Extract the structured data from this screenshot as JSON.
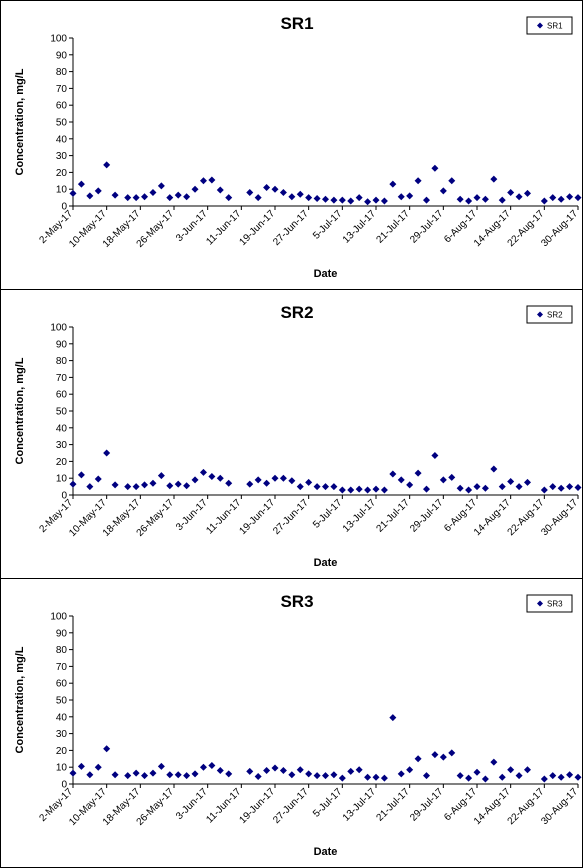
{
  "chart_data": [
    {
      "type": "scatter",
      "title": "SR1",
      "xlabel": "Date",
      "ylabel": "Concentration, mg/L",
      "ylim": [
        0,
        100
      ],
      "yticks": [
        0,
        10,
        20,
        30,
        40,
        50,
        60,
        70,
        80,
        90,
        100
      ],
      "xticks": [
        "2-May-17",
        "10-May-17",
        "18-May-17",
        "26-May-17",
        "3-Jun-17",
        "11-Jun-17",
        "19-Jun-17",
        "27-Jun-17",
        "5-Jul-17",
        "13-Jul-17",
        "21-Jul-17",
        "29-Jul-17",
        "6-Aug-17",
        "14-Aug-17",
        "22-Aug-17",
        "30-Aug-17"
      ],
      "legend": "top-right",
      "grid": false,
      "marker_color": "#000080",
      "series": [
        {
          "name": "SR1",
          "x": [
            "2-May-17",
            "4-May-17",
            "6-May-17",
            "8-May-17",
            "10-May-17",
            "12-May-17",
            "15-May-17",
            "17-May-17",
            "19-May-17",
            "21-May-17",
            "23-May-17",
            "25-May-17",
            "27-May-17",
            "29-May-17",
            "31-May-17",
            "2-Jun-17",
            "4-Jun-17",
            "6-Jun-17",
            "8-Jun-17",
            "13-Jun-17",
            "15-Jun-17",
            "17-Jun-17",
            "19-Jun-17",
            "21-Jun-17",
            "23-Jun-17",
            "25-Jun-17",
            "27-Jun-17",
            "29-Jun-17",
            "1-Jul-17",
            "3-Jul-17",
            "5-Jul-17",
            "7-Jul-17",
            "9-Jul-17",
            "11-Jul-17",
            "13-Jul-17",
            "15-Jul-17",
            "17-Jul-17",
            "19-Jul-17",
            "21-Jul-17",
            "23-Jul-17",
            "25-Jul-17",
            "27-Jul-17",
            "29-Jul-17",
            "31-Jul-17",
            "2-Aug-17",
            "4-Aug-17",
            "6-Aug-17",
            "8-Aug-17",
            "10-Aug-17",
            "12-Aug-17",
            "14-Aug-17",
            "16-Aug-17",
            "18-Aug-17",
            "22-Aug-17",
            "24-Aug-17",
            "26-Aug-17",
            "28-Aug-17",
            "30-Aug-17"
          ],
          "y": [
            7.5,
            13,
            6,
            9,
            24.5,
            6.5,
            5,
            5,
            5.5,
            8,
            12,
            5,
            6.5,
            5.5,
            10,
            15,
            15.5,
            9.5,
            5,
            8,
            5,
            11,
            10,
            8,
            5.5,
            7,
            5,
            4.5,
            4,
            3.5,
            3.5,
            3,
            5,
            2.5,
            3.5,
            3,
            13,
            5.5,
            6,
            15,
            3.5,
            22.5,
            9,
            15,
            4,
            3,
            5,
            4,
            16,
            3.5,
            8,
            5.5,
            7.5,
            3,
            5,
            4,
            5.5,
            5
          ]
        }
      ]
    },
    {
      "type": "scatter",
      "title": "SR2",
      "xlabel": "Date",
      "ylabel": "Concentration, mg/L",
      "ylim": [
        0,
        100
      ],
      "yticks": [
        0,
        10,
        20,
        30,
        40,
        50,
        60,
        70,
        80,
        90,
        100
      ],
      "xticks": [
        "2-May-17",
        "10-May-17",
        "18-May-17",
        "26-May-17",
        "3-Jun-17",
        "11-Jun-17",
        "19-Jun-17",
        "27-Jun-17",
        "5-Jul-17",
        "13-Jul-17",
        "21-Jul-17",
        "29-Jul-17",
        "6-Aug-17",
        "14-Aug-17",
        "22-Aug-17",
        "30-Aug-17"
      ],
      "legend": "top-right",
      "grid": false,
      "marker_color": "#000080",
      "series": [
        {
          "name": "SR2",
          "x": [
            "2-May-17",
            "4-May-17",
            "6-May-17",
            "8-May-17",
            "10-May-17",
            "12-May-17",
            "15-May-17",
            "17-May-17",
            "19-May-17",
            "21-May-17",
            "23-May-17",
            "25-May-17",
            "27-May-17",
            "29-May-17",
            "31-May-17",
            "2-Jun-17",
            "4-Jun-17",
            "6-Jun-17",
            "8-Jun-17",
            "13-Jun-17",
            "15-Jun-17",
            "17-Jun-17",
            "19-Jun-17",
            "21-Jun-17",
            "23-Jun-17",
            "25-Jun-17",
            "27-Jun-17",
            "29-Jun-17",
            "1-Jul-17",
            "3-Jul-17",
            "5-Jul-17",
            "7-Jul-17",
            "9-Jul-17",
            "11-Jul-17",
            "13-Jul-17",
            "15-Jul-17",
            "17-Jul-17",
            "19-Jul-17",
            "21-Jul-17",
            "23-Jul-17",
            "25-Jul-17",
            "27-Jul-17",
            "29-Jul-17",
            "31-Jul-17",
            "2-Aug-17",
            "4-Aug-17",
            "6-Aug-17",
            "8-Aug-17",
            "10-Aug-17",
            "12-Aug-17",
            "14-Aug-17",
            "16-Aug-17",
            "18-Aug-17",
            "22-Aug-17",
            "24-Aug-17",
            "26-Aug-17",
            "28-Aug-17",
            "30-Aug-17"
          ],
          "y": [
            6.5,
            12,
            5,
            9.5,
            25,
            6,
            5,
            5,
            6,
            7,
            11.5,
            5.5,
            6.5,
            5.5,
            9,
            13.5,
            11,
            10,
            7,
            6.5,
            9,
            7,
            10,
            10,
            8.5,
            5,
            7.5,
            5,
            5,
            5,
            3,
            3,
            3.5,
            3,
            3.5,
            3,
            12.5,
            9,
            6,
            13,
            3.5,
            23.5,
            9,
            10.5,
            4,
            3,
            5,
            4,
            15.5,
            5,
            8,
            5,
            7.5,
            3,
            5,
            4,
            5,
            4.5
          ]
        }
      ]
    },
    {
      "type": "scatter",
      "title": "SR3",
      "xlabel": "Date",
      "ylabel": "Concentration, mg/L",
      "ylim": [
        0,
        100
      ],
      "yticks": [
        0,
        10,
        20,
        30,
        40,
        50,
        60,
        70,
        80,
        90,
        100
      ],
      "xticks": [
        "2-May-17",
        "10-May-17",
        "18-May-17",
        "26-May-17",
        "3-Jun-17",
        "11-Jun-17",
        "19-Jun-17",
        "27-Jun-17",
        "5-Jul-17",
        "13-Jul-17",
        "21-Jul-17",
        "29-Jul-17",
        "6-Aug-17",
        "14-Aug-17",
        "22-Aug-17",
        "30-Aug-17"
      ],
      "legend": "top-right",
      "grid": false,
      "marker_color": "#000080",
      "series": [
        {
          "name": "SR3",
          "x": [
            "2-May-17",
            "4-May-17",
            "6-May-17",
            "8-May-17",
            "10-May-17",
            "12-May-17",
            "15-May-17",
            "17-May-17",
            "19-May-17",
            "21-May-17",
            "23-May-17",
            "25-May-17",
            "27-May-17",
            "29-May-17",
            "31-May-17",
            "2-Jun-17",
            "4-Jun-17",
            "6-Jun-17",
            "8-Jun-17",
            "13-Jun-17",
            "15-Jun-17",
            "17-Jun-17",
            "19-Jun-17",
            "21-Jun-17",
            "23-Jun-17",
            "25-Jun-17",
            "27-Jun-17",
            "29-Jun-17",
            "1-Jul-17",
            "3-Jul-17",
            "5-Jul-17",
            "7-Jul-17",
            "9-Jul-17",
            "11-Jul-17",
            "13-Jul-17",
            "15-Jul-17",
            "17-Jul-17",
            "19-Jul-17",
            "21-Jul-17",
            "23-Jul-17",
            "25-Jul-17",
            "27-Jul-17",
            "29-Jul-17",
            "31-Jul-17",
            "2-Aug-17",
            "4-Aug-17",
            "6-Aug-17",
            "8-Aug-17",
            "10-Aug-17",
            "12-Aug-17",
            "14-Aug-17",
            "16-Aug-17",
            "18-Aug-17",
            "22-Aug-17",
            "24-Aug-17",
            "26-Aug-17",
            "28-Aug-17",
            "30-Aug-17"
          ],
          "y": [
            6.5,
            10.5,
            5.5,
            10,
            21,
            5.5,
            5,
            6.5,
            5,
            6.5,
            10.5,
            5.5,
            5.5,
            5,
            6,
            10,
            11,
            8,
            6,
            7.5,
            4.5,
            8,
            9.5,
            8,
            5.5,
            8.5,
            6,
            5,
            5,
            5.5,
            3.5,
            7.5,
            8.5,
            4,
            4,
            3.5,
            39.5,
            6,
            8.5,
            15,
            5,
            17.5,
            16,
            18.5,
            5,
            3.5,
            7,
            3,
            13,
            4,
            8.5,
            5,
            8.5,
            3,
            5,
            4,
            5.5,
            4
          ]
        }
      ]
    }
  ]
}
